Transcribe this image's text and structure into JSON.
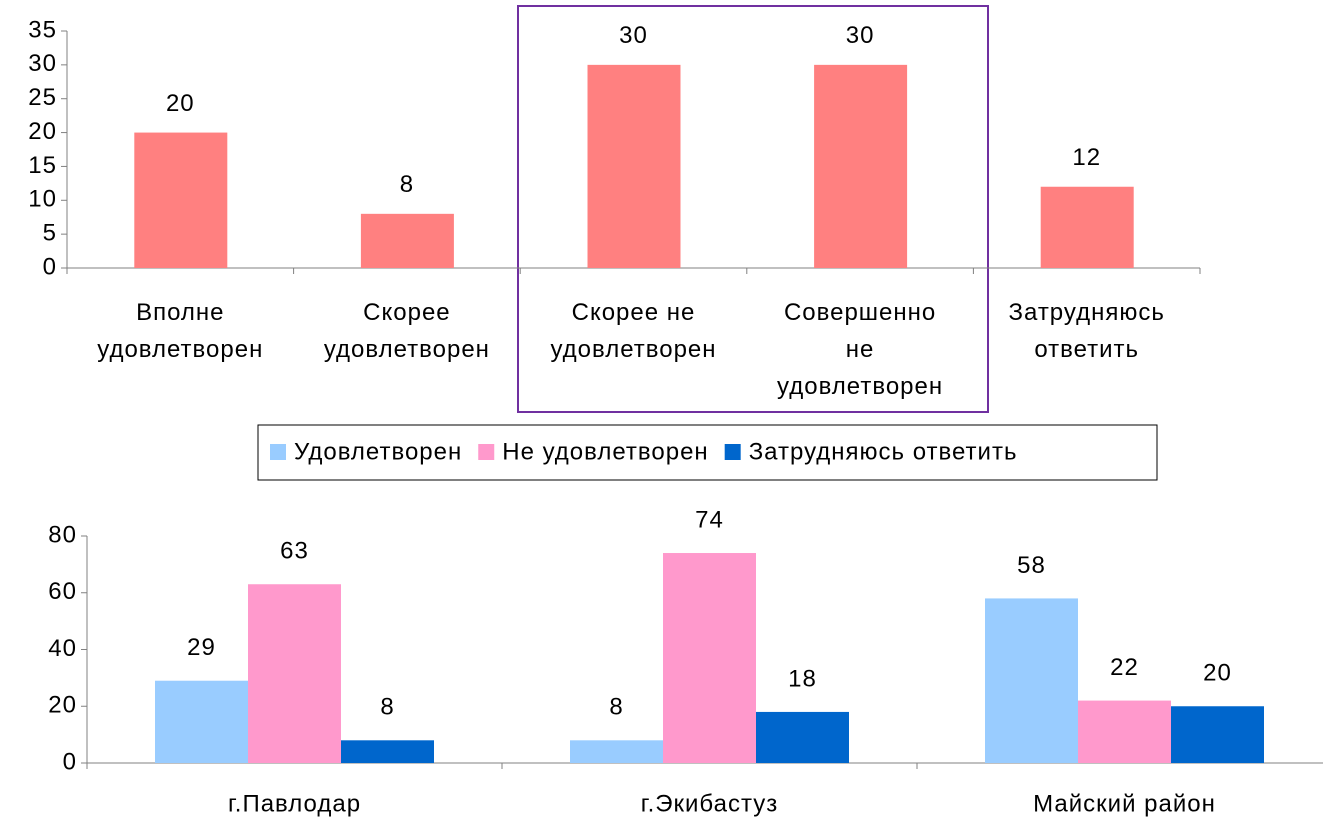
{
  "chart_data": [
    {
      "type": "bar",
      "categories": [
        "Вполне удовлетворен",
        "Скорее удовлетворен",
        "Скорее не удовлетворен",
        "Совершенно не удовлетворен",
        "Затрудняюсь ответить"
      ],
      "values": [
        20,
        8,
        30,
        30,
        12
      ],
      "color": "#ff8080",
      "ylim": [
        0,
        35
      ],
      "yticks": [
        0,
        5,
        10,
        15,
        20,
        25,
        30,
        35
      ]
    },
    {
      "type": "grouped_bar",
      "categories": [
        "г.Павлодар",
        "г.Экибастуз",
        "Майский район"
      ],
      "series": [
        {
          "name": "Удовлетворен",
          "color": "#99ccff",
          "values": [
            29,
            8,
            58
          ]
        },
        {
          "name": "Не удовлетворен",
          "color": "#ff99cc",
          "values": [
            63,
            74,
            22
          ]
        },
        {
          "name": "Затрудняюсь ответить",
          "color": "#0066cc",
          "values": [
            8,
            18,
            20
          ]
        }
      ],
      "ylim": [
        0,
        80
      ],
      "yticks": [
        0,
        20,
        40,
        60,
        80
      ],
      "legend": "top"
    }
  ]
}
